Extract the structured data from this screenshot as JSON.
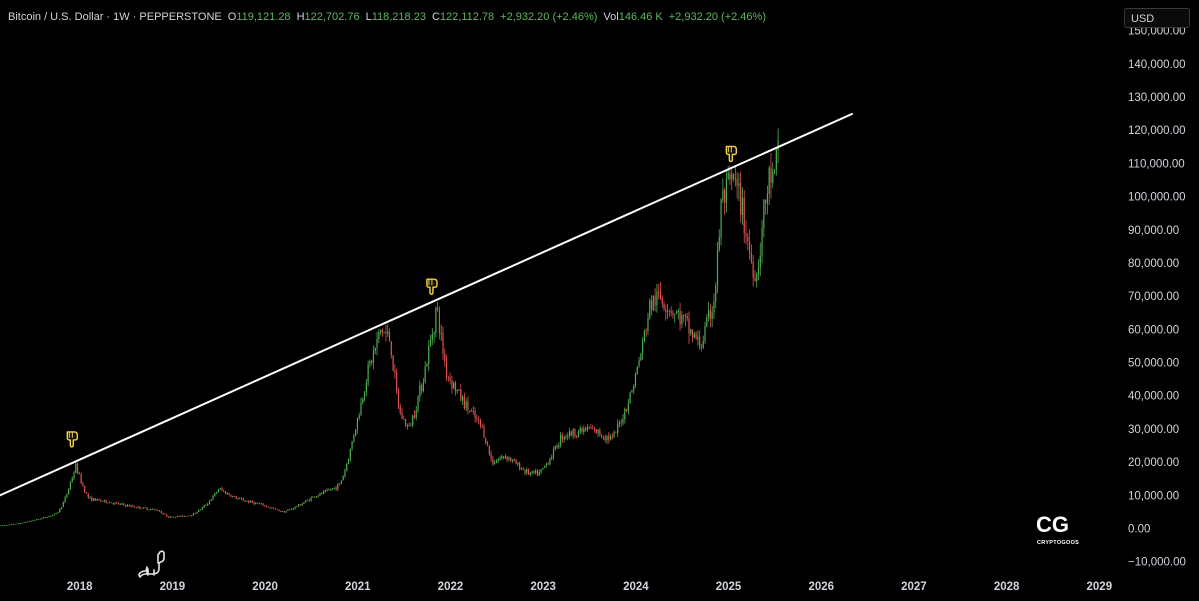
{
  "header": {
    "symbol": "Bitcoin / U.S. Dollar · 1W · PEPPERSTONE",
    "open_label": "O",
    "open": "119,121.28",
    "high_label": "H",
    "high": "122,702.76",
    "low_label": "L",
    "low": "118,218.23",
    "close_label": "C",
    "close": "122,112.78",
    "change": "+2,932.20 (+2.46%)",
    "vol_label": "Vol",
    "vol": "146.46 K",
    "vol_change": "+2,932.20 (+2.46%)"
  },
  "currency": "USD",
  "logo": {
    "mark": "CG",
    "name": "CRYPTOGOOS"
  },
  "colors": {
    "up": "#4caf50",
    "down": "#e05252",
    "line": "#ffffff",
    "marker": "#f5d142",
    "text": "#d1d4dc",
    "background": "#000000"
  },
  "chart_data": {
    "type": "candlestick",
    "title": "",
    "y_ticks": [
      "150,000.00",
      "140,000.00",
      "130,000.00",
      "120,000.00",
      "110,000.00",
      "100,000.00",
      "90,000.00",
      "80,000.00",
      "70,000.00",
      "60,000.00",
      "50,000.00",
      "40,000.00",
      "30,000.00",
      "20,000.00",
      "10,000.00",
      "0.00",
      "−10,000.00"
    ],
    "y_tick_values": [
      150000,
      140000,
      130000,
      120000,
      110000,
      100000,
      90000,
      80000,
      70000,
      60000,
      50000,
      40000,
      30000,
      20000,
      10000,
      0,
      -10000
    ],
    "x_ticks": [
      "2018",
      "2019",
      "2020",
      "2021",
      "2022",
      "2023",
      "2024",
      "2025",
      "2026",
      "2027",
      "2028",
      "2029"
    ],
    "x_tick_values": [
      2018,
      2019,
      2020,
      2021,
      2022,
      2023,
      2024,
      2025,
      2026,
      2027,
      2028,
      2029
    ],
    "ylim": [
      -12500,
      152000
    ],
    "xlim": [
      2017.14,
      2029.18
    ],
    "price_path": [
      [
        2017.15,
        900
      ],
      [
        2017.5,
        2500
      ],
      [
        2017.75,
        4500
      ],
      [
        2017.9,
        14000
      ],
      [
        2017.96,
        19000
      ],
      [
        2018.1,
        9000
      ],
      [
        2018.3,
        8000
      ],
      [
        2018.6,
        6500
      ],
      [
        2018.85,
        5500
      ],
      [
        2018.96,
        3400
      ],
      [
        2019.2,
        4000
      ],
      [
        2019.5,
        12000
      ],
      [
        2019.7,
        9000
      ],
      [
        2019.96,
        7200
      ],
      [
        2020.2,
        5000
      ],
      [
        2020.5,
        9300
      ],
      [
        2020.8,
        13000
      ],
      [
        2020.96,
        29000
      ],
      [
        2021.1,
        47000
      ],
      [
        2021.25,
        60000
      ],
      [
        2021.35,
        57000
      ],
      [
        2021.45,
        35000
      ],
      [
        2021.55,
        30000
      ],
      [
        2021.7,
        45000
      ],
      [
        2021.85,
        67000
      ],
      [
        2021.96,
        47000
      ],
      [
        2022.1,
        40000
      ],
      [
        2022.35,
        30000
      ],
      [
        2022.45,
        20000
      ],
      [
        2022.6,
        22000
      ],
      [
        2022.85,
        16500
      ],
      [
        2022.96,
        16600
      ],
      [
        2023.2,
        28000
      ],
      [
        2023.5,
        30000
      ],
      [
        2023.75,
        27000
      ],
      [
        2023.96,
        42000
      ],
      [
        2024.15,
        67000
      ],
      [
        2024.25,
        70000
      ],
      [
        2024.5,
        63000
      ],
      [
        2024.7,
        55000
      ],
      [
        2024.85,
        70000
      ],
      [
        2024.92,
        98000
      ],
      [
        2025.05,
        105000
      ],
      [
        2025.15,
        96000
      ],
      [
        2025.25,
        80000
      ],
      [
        2025.3,
        76000
      ],
      [
        2025.38,
        95000
      ],
      [
        2025.45,
        107000
      ],
      [
        2025.5,
        104000
      ],
      [
        2025.55,
        122000
      ]
    ],
    "trendline": {
      "start": [
        2017.1,
        9500
      ],
      "end": [
        2026.34,
        125000
      ]
    },
    "markers": [
      {
        "x": 2017.92,
        "y": 27000,
        "icon": "pointing-down-hand-icon"
      },
      {
        "x": 2021.8,
        "y": 73000,
        "icon": "pointing-down-hand-icon"
      },
      {
        "x": 2025.03,
        "y": 113000,
        "icon": "pointing-down-hand-icon"
      }
    ]
  }
}
